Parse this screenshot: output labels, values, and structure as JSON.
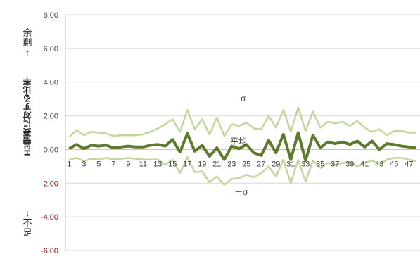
{
  "chart_data": {
    "type": "line",
    "title": "",
    "ylabel": "H3需要に対する比率",
    "ylim": [
      -6,
      8
    ],
    "yticks": [
      "8.00",
      "6.00",
      "4.00",
      "2.00",
      "0.00",
      "-2.00",
      "-4.00",
      "-6.00"
    ],
    "x": [
      1,
      2,
      3,
      4,
      5,
      6,
      7,
      8,
      9,
      10,
      11,
      12,
      13,
      14,
      15,
      16,
      17,
      18,
      19,
      20,
      21,
      22,
      23,
      24,
      25,
      26,
      27,
      28,
      29,
      30,
      31,
      32,
      33,
      34,
      35,
      36,
      37,
      38,
      39,
      40,
      41,
      42,
      43,
      44,
      45,
      46,
      47,
      48
    ],
    "xtick_labels": [
      "1",
      "3",
      "5",
      "7",
      "9",
      "11",
      "13",
      "15",
      "17",
      "19",
      "21",
      "23",
      "25",
      "27",
      "29",
      "31",
      "33",
      "35",
      "37",
      "39",
      "41",
      "43",
      "45",
      "47"
    ],
    "series": [
      {
        "name": "σ",
        "values": [
          0.75,
          1.15,
          0.85,
          1.05,
          1.0,
          0.95,
          0.8,
          0.85,
          0.85,
          0.85,
          0.9,
          1.05,
          1.25,
          1.5,
          1.8,
          1.05,
          2.35,
          1.2,
          1.8,
          0.9,
          1.9,
          0.8,
          1.5,
          1.4,
          1.6,
          1.25,
          1.2,
          2.0,
          1.3,
          2.35,
          1.05,
          2.5,
          1.1,
          2.25,
          1.3,
          1.65,
          1.55,
          1.65,
          1.4,
          1.7,
          1.3,
          1.05,
          1.2,
          0.85,
          1.1,
          1.1,
          1.0,
          1.0
        ]
      },
      {
        "name": "平均",
        "values": [
          0.05,
          0.3,
          0.05,
          0.25,
          0.2,
          0.25,
          0.1,
          0.15,
          0.2,
          0.15,
          0.15,
          0.25,
          0.3,
          0.2,
          0.6,
          -0.15,
          0.95,
          -0.1,
          0.25,
          -0.4,
          0.1,
          -0.6,
          0.2,
          0.05,
          0.3,
          -0.2,
          -0.35,
          0.55,
          -0.2,
          0.9,
          -0.6,
          1.0,
          -0.65,
          0.85,
          0.1,
          0.45,
          0.35,
          0.45,
          0.3,
          0.5,
          0.15,
          0.5,
          0.0,
          0.35,
          0.3,
          0.2,
          0.15,
          0.1
        ]
      },
      {
        "name": "－σ",
        "values": [
          -0.6,
          -0.5,
          -0.7,
          -0.55,
          -0.6,
          -0.5,
          -0.6,
          -0.55,
          -0.5,
          -0.55,
          -0.6,
          -0.6,
          -0.6,
          -0.9,
          -0.6,
          -1.4,
          -0.45,
          -1.35,
          -1.3,
          -1.95,
          -1.6,
          -2.1,
          -1.75,
          -1.7,
          -1.5,
          -1.65,
          -1.4,
          -1.0,
          -1.6,
          -0.6,
          -2.0,
          -0.6,
          -1.9,
          -0.65,
          -1.1,
          -0.8,
          -0.9,
          -0.8,
          -0.75,
          -1.0,
          -0.8,
          -0.65,
          -0.9,
          -0.6,
          -0.5,
          -0.5,
          -0.6,
          -0.7
        ]
      }
    ],
    "colors": {
      "sigma": "#c3d69b",
      "mean": "#5f7a2b",
      "axis": "#d9d9d9"
    },
    "annotations": {
      "sigma": "σ",
      "mean": "平均",
      "minus_sigma": "－σ"
    },
    "grid": true,
    "legend": "none"
  },
  "side_labels": {
    "top": [
      "余",
      "剰",
      "↑"
    ],
    "bottom": [
      "↓",
      "不",
      "足"
    ]
  }
}
